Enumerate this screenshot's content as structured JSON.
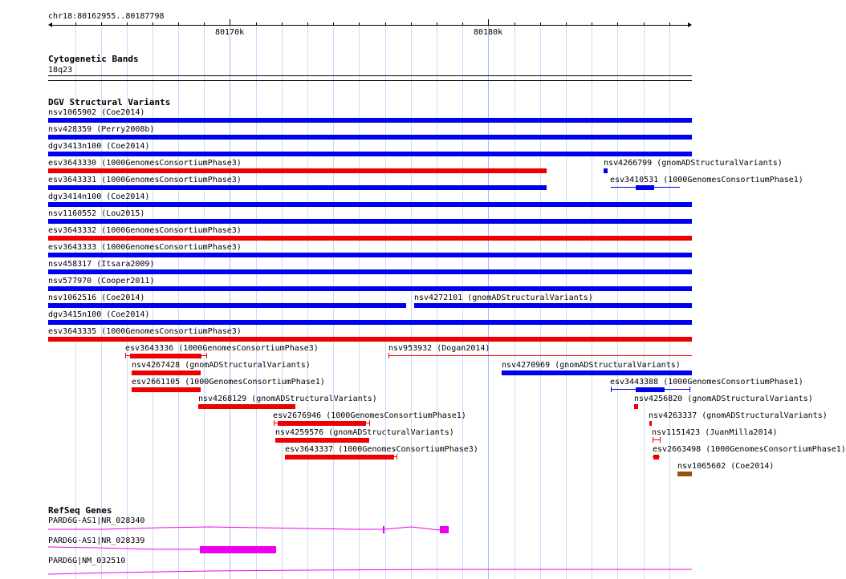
{
  "ruler": {
    "location": "chr18:80162955..80187798",
    "ticks": [
      "80170k",
      "80180k"
    ]
  },
  "cytoband": {
    "title": "Cytogenetic Bands",
    "band": "18q23"
  },
  "dgv": {
    "title": "DGV Structural Variants",
    "colors": {
      "gain": "#0000ee",
      "loss": "#ee0000",
      "other": "#99520a"
    },
    "features": [
      "nsv1065902 (Coe2014)",
      "nsv428359 (Perry2008b)",
      "dgv3413n100 (Coe2014)",
      "esv3643330 (1000GenomesConsortiumPhase3)",
      "nsv4266799 (gnomADStructuralVariants)",
      "esv3643331 (1000GenomesConsortiumPhase3)",
      "esv3410531 (1000GenomesConsortiumPhase1)",
      "dgv3414n100 (Coe2014)",
      "nsv1160552 (Lou2015)",
      "esv3643332 (1000GenomesConsortiumPhase3)",
      "esv3643333 (1000GenomesConsortiumPhase3)",
      "nsv458317 (Itsara2009)",
      "nsv577970 (Cooper2011)",
      "nsv1062516 (Coe2014)",
      "nsv4272101 (gnomADStructuralVariants)",
      "dgv3415n100 (Coe2014)",
      "esv3643335 (1000GenomesConsortiumPhase3)",
      "esv3643336 (1000GenomesConsortiumPhase3)",
      "nsv953932 (Dogan2014)",
      "nsv4267428 (gnomADStructuralVariants)",
      "nsv4270969 (gnomADStructuralVariants)",
      "esv2661105 (1000GenomesConsortiumPhase1)",
      "esv3443388 (1000GenomesConsortiumPhase1)",
      "nsv4268129 (gnomADStructuralVariants)",
      "nsv4256820 (gnomADStructuralVariants)",
      "esv2676946 (1000GenomesConsortiumPhase1)",
      "nsv4263337 (gnomADStructuralVariants)",
      "nsv4259576 (gnomADStructuralVariants)",
      "nsv1151423 (JuanMilla2014)",
      "esv3643337 (1000GenomesConsortiumPhase3)",
      "esv2663498 (1000GenomesConsortiumPhase1)",
      "nsv1065602 (Coe2014)"
    ]
  },
  "refseq": {
    "title": "RefSeq Genes",
    "color": "#ee00ee",
    "genes": [
      "PARD6G-AS1|NR_028340",
      "PARD6G-AS1|NR_028339",
      "PARD6G|NM_032510"
    ]
  }
}
